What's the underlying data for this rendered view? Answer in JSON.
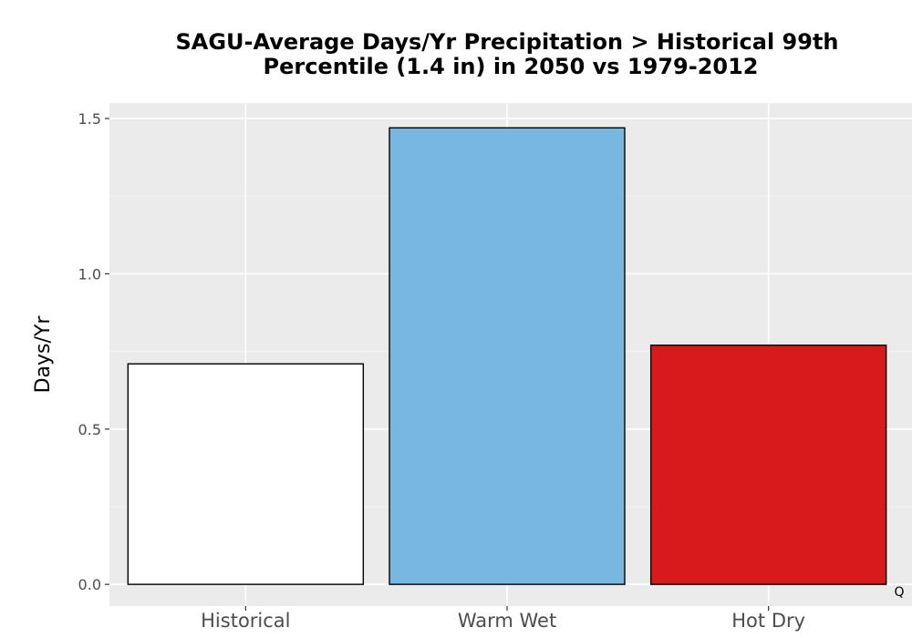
{
  "chart_data": {
    "type": "bar",
    "title": "SAGU-Average Days/Yr Precipitation > Historical 99th Percentile (1.4 in) in 2050 vs 1979-2012",
    "title_lines": [
      "SAGU-Average Days/Yr Precipitation > Historical 99th",
      "Percentile (1.4 in) in 2050 vs 1979-2012"
    ],
    "xlabel": "",
    "ylabel": "Days/Yr",
    "categories": [
      "Historical",
      "Warm Wet",
      "Hot Dry"
    ],
    "values": [
      0.71,
      1.47,
      0.77
    ],
    "colors": [
      "#ffffff",
      "#78b7e0",
      "#d71a1c"
    ],
    "ylim": [
      -0.07,
      1.55
    ],
    "yticks": [
      0.0,
      0.5,
      1.0,
      1.5
    ],
    "ytick_labels": [
      "0.0",
      "0.5",
      "1.0",
      "1.5"
    ],
    "grid": true,
    "panel_background": "#ebebeb",
    "corner_label": "Q"
  }
}
